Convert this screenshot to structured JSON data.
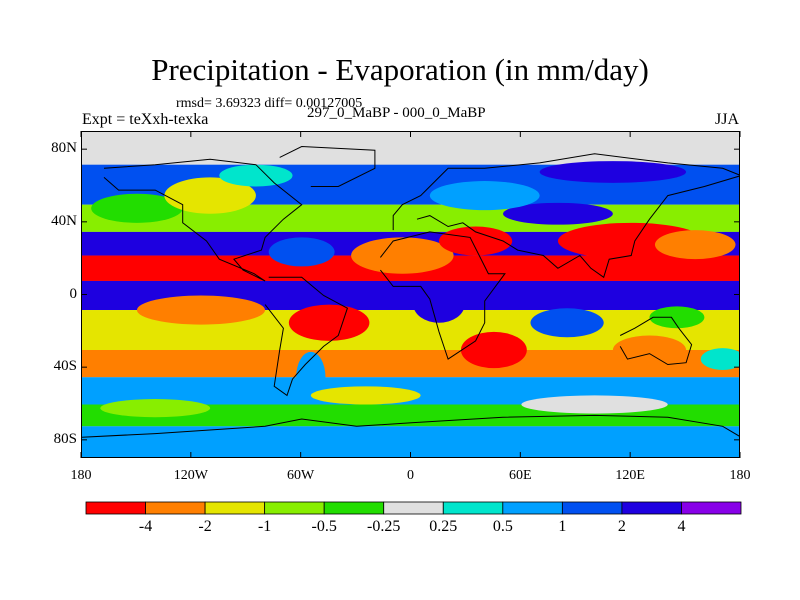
{
  "header": {
    "title": "Precipitation - Evaporation (in mm/day)",
    "stats": "rmsd= 3.69323 diff= 0.00127005",
    "experiment": "Expt = teXxh-texka",
    "period": "297_0_MaBP - 000_0_MaBP",
    "season": "JJA"
  },
  "axes": {
    "lat_labels": [
      "80N",
      "40N",
      "0",
      "40S",
      "80S"
    ],
    "lat_values": [
      80,
      40,
      0,
      -40,
      -80
    ],
    "lon_labels": [
      "180",
      "120W",
      "60W",
      "0",
      "60E",
      "120E",
      "180"
    ],
    "lon_values": [
      -180,
      -120,
      -60,
      0,
      60,
      120,
      180
    ]
  },
  "colorbar": {
    "colors": [
      "#ff0000",
      "#ff7f00",
      "#e5e500",
      "#88ee00",
      "#22dd00",
      "#e0e0e0",
      "#00e5cc",
      "#00a0ff",
      "#0050f0",
      "#1e00e0",
      "#8800e8"
    ],
    "labels": [
      "-4",
      "-2",
      "-1",
      "-0.5",
      "-0.25",
      "0.25",
      "0.5",
      "1",
      "2",
      "4"
    ]
  },
  "map_bands": [
    {
      "lat_from": 90,
      "lat_to": 72,
      "level": 5
    },
    {
      "lat_from": 72,
      "lat_to": 50,
      "level": 8
    },
    {
      "lat_from": 50,
      "lat_to": 35,
      "level": 3
    },
    {
      "lat_from": 35,
      "lat_to": 22,
      "level": 9
    },
    {
      "lat_from": 22,
      "lat_to": 8,
      "level": 0
    },
    {
      "lat_from": 8,
      "lat_to": -8,
      "level": 9
    },
    {
      "lat_from": -8,
      "lat_to": -30,
      "level": 2
    },
    {
      "lat_from": -30,
      "lat_to": -45,
      "level": 1
    },
    {
      "lat_from": -45,
      "lat_to": -60,
      "level": 7
    },
    {
      "lat_from": -60,
      "lat_to": -72,
      "level": 4
    },
    {
      "lat_from": -72,
      "lat_to": -90,
      "level": 7
    }
  ],
  "map_patches": [
    {
      "lon": -5,
      "lat": 22,
      "rx": 28,
      "ry": 10,
      "level": 1
    },
    {
      "lon": 35,
      "lat": 30,
      "rx": 20,
      "ry": 8,
      "level": 0
    },
    {
      "lon": 80,
      "lat": 45,
      "rx": 30,
      "ry": 6,
      "level": 9
    },
    {
      "lon": 120,
      "lat": 30,
      "rx": 40,
      "ry": 10,
      "level": 0
    },
    {
      "lon": 155,
      "lat": 28,
      "rx": 22,
      "ry": 8,
      "level": 1
    },
    {
      "lon": -150,
      "lat": 48,
      "rx": 25,
      "ry": 8,
      "level": 4
    },
    {
      "lon": -110,
      "lat": 55,
      "rx": 25,
      "ry": 10,
      "level": 2
    },
    {
      "lon": -85,
      "lat": 66,
      "rx": 20,
      "ry": 6,
      "level": 6
    },
    {
      "lon": -60,
      "lat": 24,
      "rx": 18,
      "ry": 8,
      "level": 8
    },
    {
      "lon": 40,
      "lat": 55,
      "rx": 30,
      "ry": 8,
      "level": 7
    },
    {
      "lon": 110,
      "lat": 68,
      "rx": 40,
      "ry": 6,
      "level": 9
    },
    {
      "lon": -115,
      "lat": -8,
      "rx": 35,
      "ry": 8,
      "level": 1
    },
    {
      "lon": -45,
      "lat": -15,
      "rx": 22,
      "ry": 10,
      "level": 0
    },
    {
      "lon": -55,
      "lat": -45,
      "rx": 8,
      "ry": 14,
      "level": 7
    },
    {
      "lon": 45,
      "lat": -30,
      "rx": 18,
      "ry": 10,
      "level": 0
    },
    {
      "lon": 15,
      "lat": -5,
      "rx": 14,
      "ry": 10,
      "level": 9
    },
    {
      "lon": 130,
      "lat": -30,
      "rx": 20,
      "ry": 8,
      "level": 1
    },
    {
      "lon": 85,
      "lat": -15,
      "rx": 20,
      "ry": 8,
      "level": 8
    },
    {
      "lon": 145,
      "lat": -12,
      "rx": 15,
      "ry": 6,
      "level": 4
    },
    {
      "lon": 170,
      "lat": -35,
      "rx": 12,
      "ry": 6,
      "level": 6
    },
    {
      "lon": -25,
      "lat": -55,
      "rx": 30,
      "ry": 5,
      "level": 2
    },
    {
      "lon": 100,
      "lat": -60,
      "rx": 40,
      "ry": 5,
      "level": 5
    },
    {
      "lon": -140,
      "lat": -62,
      "rx": 30,
      "ry": 5,
      "level": 3
    }
  ],
  "land_outlines": [
    [
      [
        -168,
        70
      ],
      [
        -140,
        72
      ],
      [
        -110,
        75
      ],
      [
        -85,
        72
      ],
      [
        -75,
        62
      ],
      [
        -60,
        50
      ],
      [
        -70,
        42
      ],
      [
        -80,
        32
      ],
      [
        -82,
        25
      ],
      [
        -97,
        20
      ],
      [
        -92,
        14
      ],
      [
        -80,
        8
      ],
      [
        -86,
        12
      ],
      [
        -105,
        20
      ],
      [
        -112,
        30
      ],
      [
        -125,
        40
      ],
      [
        -125,
        50
      ],
      [
        -140,
        58
      ],
      [
        -160,
        58
      ],
      [
        -168,
        65
      ]
    ],
    [
      [
        -78,
        10
      ],
      [
        -60,
        10
      ],
      [
        -48,
        0
      ],
      [
        -35,
        -7
      ],
      [
        -40,
        -22
      ],
      [
        -48,
        -28
      ],
      [
        -58,
        -38
      ],
      [
        -65,
        -46
      ],
      [
        -68,
        -55
      ],
      [
        -75,
        -50
      ],
      [
        -72,
        -30
      ],
      [
        -70,
        -18
      ],
      [
        -80,
        -5
      ]
    ],
    [
      [
        -55,
        60
      ],
      [
        -40,
        60
      ],
      [
        -20,
        70
      ],
      [
        -20,
        80
      ],
      [
        -60,
        82
      ],
      [
        -72,
        76
      ]
    ],
    [
      [
        -10,
        36
      ],
      [
        -10,
        44
      ],
      [
        -5,
        50
      ],
      [
        5,
        55
      ],
      [
        10,
        60
      ],
      [
        20,
        70
      ],
      [
        40,
        70
      ],
      [
        70,
        73
      ],
      [
        100,
        78
      ],
      [
        140,
        73
      ],
      [
        170,
        70
      ],
      [
        180,
        66
      ],
      [
        160,
        60
      ],
      [
        140,
        55
      ],
      [
        130,
        42
      ],
      [
        122,
        30
      ],
      [
        120,
        22
      ],
      [
        108,
        20
      ],
      [
        105,
        10
      ],
      [
        98,
        15
      ],
      [
        92,
        22
      ],
      [
        80,
        15
      ],
      [
        72,
        22
      ],
      [
        58,
        25
      ],
      [
        50,
        30
      ],
      [
        35,
        35
      ],
      [
        28,
        40
      ],
      [
        20,
        38
      ],
      [
        10,
        44
      ],
      [
        3,
        42
      ]
    ],
    [
      [
        -17,
        21
      ],
      [
        -10,
        30
      ],
      [
        10,
        35
      ],
      [
        32,
        32
      ],
      [
        42,
        12
      ],
      [
        51,
        12
      ],
      [
        40,
        -3
      ],
      [
        40,
        -15
      ],
      [
        35,
        -25
      ],
      [
        20,
        -35
      ],
      [
        15,
        -20
      ],
      [
        10,
        -2
      ],
      [
        5,
        5
      ],
      [
        -10,
        5
      ],
      [
        -17,
        14
      ]
    ],
    [
      [
        114,
        -22
      ],
      [
        122,
        -18
      ],
      [
        132,
        -12
      ],
      [
        142,
        -12
      ],
      [
        146,
        -18
      ],
      [
        153,
        -27
      ],
      [
        150,
        -37
      ],
      [
        140,
        -38
      ],
      [
        130,
        -32
      ],
      [
        118,
        -35
      ],
      [
        114,
        -28
      ]
    ],
    [
      [
        -180,
        -78
      ],
      [
        -140,
        -76
      ],
      [
        -80,
        -72
      ],
      [
        -60,
        -68
      ],
      [
        -30,
        -72
      ],
      [
        0,
        -70
      ],
      [
        50,
        -67
      ],
      [
        100,
        -66
      ],
      [
        140,
        -67
      ],
      [
        170,
        -72
      ],
      [
        180,
        -78
      ],
      [
        180,
        -90
      ],
      [
        -180,
        -90
      ]
    ]
  ]
}
